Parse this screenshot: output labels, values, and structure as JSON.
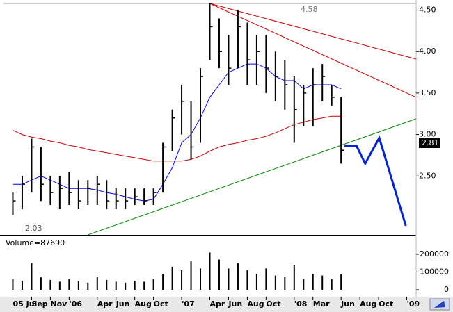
{
  "chart_data": {
    "type": "ohlc",
    "x": [
      "2005-07",
      "2005-08",
      "2005-09",
      "2005-10",
      "2005-11",
      "2005-12",
      "2006-01",
      "2006-02",
      "2006-03",
      "2006-04",
      "2006-05",
      "2006-06",
      "2006-07",
      "2006-08",
      "2006-09",
      "2006-10",
      "2006-11",
      "2006-12",
      "2007-01",
      "2007-02",
      "2007-03",
      "2007-04",
      "2007-05",
      "2007-06",
      "2007-07",
      "2007-08",
      "2007-09",
      "2007-10",
      "2007-11",
      "2007-12",
      "2008-01",
      "2008-02",
      "2008-03",
      "2008-04",
      "2008-05",
      "2008-06"
    ],
    "high": [
      2.3,
      2.5,
      2.95,
      2.85,
      2.5,
      2.5,
      2.55,
      2.45,
      2.45,
      2.5,
      2.45,
      2.35,
      2.35,
      2.35,
      2.35,
      2.35,
      2.9,
      3.3,
      3.6,
      3.4,
      3.8,
      4.58,
      4.4,
      4.2,
      4.5,
      4.35,
      4.2,
      4.2,
      4.0,
      3.9,
      3.7,
      3.6,
      3.8,
      3.85,
      3.6,
      3.45
    ],
    "low": [
      2.03,
      2.1,
      2.3,
      2.2,
      2.15,
      2.1,
      2.15,
      2.1,
      2.15,
      2.15,
      2.1,
      2.1,
      2.1,
      2.15,
      2.15,
      2.15,
      2.3,
      2.8,
      3.0,
      2.7,
      2.9,
      3.9,
      3.8,
      3.6,
      3.8,
      3.6,
      3.6,
      3.5,
      3.4,
      3.3,
      2.9,
      3.1,
      3.1,
      3.4,
      3.35,
      2.65
    ],
    "close": [
      2.2,
      2.4,
      2.85,
      2.4,
      2.3,
      2.35,
      2.3,
      2.2,
      2.35,
      2.4,
      2.2,
      2.2,
      2.2,
      2.25,
      2.2,
      2.3,
      2.85,
      3.2,
      3.4,
      2.85,
      3.7,
      4.3,
      4.0,
      3.8,
      4.3,
      3.9,
      4.0,
      3.8,
      3.7,
      3.6,
      3.3,
      3.5,
      3.6,
      3.7,
      3.45,
      2.81
    ],
    "volume": [
      60000,
      50000,
      150000,
      70000,
      55000,
      45000,
      60000,
      50000,
      40000,
      70000,
      55000,
      45000,
      40000,
      50000,
      45000,
      60000,
      90000,
      130000,
      110000,
      160000,
      120000,
      210000,
      170000,
      120000,
      150000,
      110000,
      90000,
      120000,
      80000,
      70000,
      140000,
      60000,
      90000,
      80000,
      60000,
      87690
    ],
    "color": "#000000",
    "volume_color": "#000000",
    "ma_short": {
      "color": "#0000ff",
      "values": [
        2.4,
        2.4,
        2.45,
        2.5,
        2.45,
        2.4,
        2.35,
        2.35,
        2.35,
        2.33,
        2.3,
        2.28,
        2.25,
        2.22,
        2.2,
        2.22,
        2.4,
        2.6,
        2.9,
        3.0,
        3.2,
        3.45,
        3.6,
        3.75,
        3.8,
        3.85,
        3.85,
        3.8,
        3.7,
        3.65,
        3.65,
        3.55,
        3.6,
        3.6,
        3.6,
        3.55
      ]
    },
    "ma_long": {
      "color": "#cc0000",
      "values": [
        3.05,
        3.0,
        2.97,
        2.95,
        2.92,
        2.9,
        2.87,
        2.85,
        2.82,
        2.8,
        2.78,
        2.76,
        2.74,
        2.72,
        2.7,
        2.68,
        2.68,
        2.68,
        2.68,
        2.7,
        2.74,
        2.8,
        2.85,
        2.88,
        2.9,
        2.93,
        2.95,
        2.98,
        3.02,
        3.07,
        3.12,
        3.15,
        3.18,
        3.2,
        3.22,
        3.22
      ]
    },
    "trendlines": [
      {
        "color": "#cc0000",
        "x": [
          "2007-04",
          "2009-02"
        ],
        "y": [
          4.58,
          3.91
        ]
      },
      {
        "color": "#cc0000",
        "x": [
          "2007-04",
          "2009-02"
        ],
        "y": [
          4.58,
          3.45
        ]
      },
      {
        "color": "#008800",
        "x": [
          "2006-03",
          "2009-02"
        ],
        "y": [
          1.79,
          3.19
        ]
      }
    ],
    "projection": {
      "color": "#0022dd",
      "x": [
        "2008-06-12",
        "2008-07-21",
        "2008-08-18",
        "2008-10-03",
        "2008-12-28"
      ],
      "y": [
        2.86,
        2.86,
        2.65,
        2.96,
        1.9
      ]
    },
    "xlim": [
      "2005-06",
      "2009-02"
    ],
    "xticks": [
      {
        "value": "2005-07",
        "label": "05 Jul"
      },
      {
        "value": "2005-09",
        "label": "Sep"
      },
      {
        "value": "2005-11",
        "label": "Nov"
      },
      {
        "value": "2006-01",
        "label": "'06"
      },
      {
        "value": "2006-04",
        "label": "Apr"
      },
      {
        "value": "2006-06",
        "label": "Jun"
      },
      {
        "value": "2006-08",
        "label": "Aug"
      },
      {
        "value": "2006-10",
        "label": "Oct"
      },
      {
        "value": "2007-01",
        "label": "'07"
      },
      {
        "value": "2007-04",
        "label": "Apr"
      },
      {
        "value": "2007-06",
        "label": "Jun"
      },
      {
        "value": "2007-08",
        "label": "Aug"
      },
      {
        "value": "2007-10",
        "label": "Oct"
      },
      {
        "value": "2008-01",
        "label": "'08"
      },
      {
        "value": "2008-03",
        "label": "Mar"
      },
      {
        "value": "2008-06",
        "label": "Jun"
      },
      {
        "value": "2008-08",
        "label": "Aug"
      },
      {
        "value": "2008-10",
        "label": "Oct"
      },
      {
        "value": "2009-01",
        "label": "'09"
      }
    ],
    "ylim": [
      1.79,
      4.58
    ],
    "yticks": [
      {
        "value": 2.5,
        "label": "2.50"
      },
      {
        "value": 3,
        "label": "3.00"
      },
      {
        "value": 3.5,
        "label": "3.50"
      },
      {
        "value": 4,
        "label": "4.00"
      },
      {
        "value": 4.5,
        "label": "4.50"
      }
    ],
    "volume_ylim": [
      0,
      282000
    ],
    "volume_yticks": [
      0,
      100000,
      200000
    ],
    "volume_title": "Volume=87690",
    "annotations": {
      "high": "4.58",
      "low": "2.03",
      "last": "2.81"
    }
  }
}
